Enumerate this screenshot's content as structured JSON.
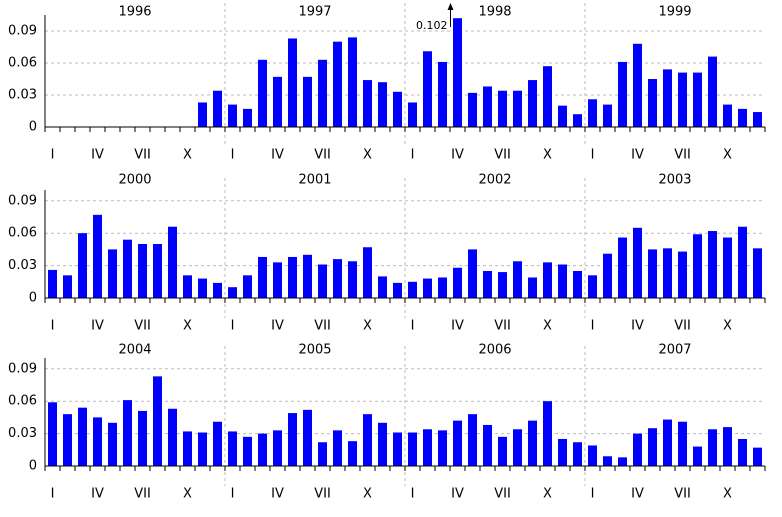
{
  "chart_data": [
    {
      "type": "bar",
      "color": "#0000ff",
      "grid": true,
      "years": [
        "1996",
        "1997",
        "1998",
        "1999"
      ],
      "categories": [
        "I",
        null,
        null,
        "IV",
        null,
        null,
        "VII",
        null,
        null,
        "X",
        null,
        null,
        "I",
        null,
        null,
        "IV",
        null,
        null,
        "VII",
        null,
        null,
        "X",
        null,
        null,
        "I",
        null,
        null,
        "IV",
        null,
        null,
        "VII",
        null,
        null,
        "X",
        null,
        null,
        "I",
        null,
        null,
        "IV",
        null,
        null,
        "VII",
        null,
        null,
        "X",
        null,
        null
      ],
      "values": [
        0,
        0,
        0,
        0,
        0,
        0,
        0,
        0,
        0,
        0,
        0.023,
        0.034,
        0.021,
        0.017,
        0.063,
        0.047,
        0.083,
        0.047,
        0.063,
        0.08,
        0.084,
        0.044,
        0.042,
        0.033,
        0.023,
        0.071,
        0.061,
        0.102,
        0.032,
        0.038,
        0.034,
        0.034,
        0.044,
        0.057,
        0.02,
        0.012,
        0.026,
        0.021,
        0.061,
        0.078,
        0.045,
        0.054,
        0.051,
        0.051,
        0.066,
        0.021,
        0.017,
        0.014
      ],
      "value_labels": [
        null,
        null,
        null,
        null,
        null,
        null,
        null,
        null,
        null,
        null,
        null,
        null,
        null,
        null,
        null,
        null,
        null,
        null,
        null,
        null,
        null,
        null,
        null,
        null,
        null,
        null,
        null,
        "0.102",
        null,
        null,
        null,
        null,
        null,
        null,
        null,
        null,
        null,
        null,
        null,
        null,
        null,
        null,
        null,
        null,
        null,
        null,
        null,
        null
      ],
      "ylim": [
        0,
        0.105
      ],
      "yticks": [
        0,
        0.03,
        0.06,
        0.09
      ]
    },
    {
      "type": "bar",
      "color": "#0000ff",
      "grid": true,
      "years": [
        "2000",
        "2001",
        "2002",
        "2003"
      ],
      "categories": [
        "I",
        null,
        null,
        "IV",
        null,
        null,
        "VII",
        null,
        null,
        "X",
        null,
        null,
        "I",
        null,
        null,
        "IV",
        null,
        null,
        "VII",
        null,
        null,
        "X",
        null,
        null,
        "I",
        null,
        null,
        "IV",
        null,
        null,
        "VII",
        null,
        null,
        "X",
        null,
        null,
        "I",
        null,
        null,
        "IV",
        null,
        null,
        "VII",
        null,
        null,
        "X",
        null,
        null
      ],
      "values": [
        0.026,
        0.021,
        0.06,
        0.077,
        0.045,
        0.054,
        0.05,
        0.05,
        0.066,
        0.021,
        0.018,
        0.014,
        0.01,
        0.021,
        0.038,
        0.033,
        0.038,
        0.04,
        0.031,
        0.036,
        0.034,
        0.047,
        0.02,
        0.014,
        0.015,
        0.018,
        0.019,
        0.028,
        0.045,
        0.025,
        0.024,
        0.034,
        0.019,
        0.033,
        0.031,
        0.025,
        0.021,
        0.041,
        0.056,
        0.065,
        0.045,
        0.046,
        0.043,
        0.059,
        0.062,
        0.056,
        0.066,
        0.046
      ],
      "ylim": [
        0,
        0.1
      ],
      "yticks": [
        0,
        0.03,
        0.06,
        0.09
      ]
    },
    {
      "type": "bar",
      "color": "#0000ff",
      "grid": true,
      "years": [
        "2004",
        "2005",
        "2006",
        "2007"
      ],
      "categories": [
        "I",
        null,
        null,
        "IV",
        null,
        null,
        "VII",
        null,
        null,
        "X",
        null,
        null,
        "I",
        null,
        null,
        "IV",
        null,
        null,
        "VII",
        null,
        null,
        "X",
        null,
        null,
        "I",
        null,
        null,
        "IV",
        null,
        null,
        "VII",
        null,
        null,
        "X",
        null,
        null,
        "I",
        null,
        null,
        "IV",
        null,
        null,
        "VII",
        null,
        null,
        "X",
        null,
        null
      ],
      "values": [
        0.059,
        0.048,
        0.054,
        0.045,
        0.04,
        0.061,
        0.051,
        0.083,
        0.053,
        0.032,
        0.031,
        0.041,
        0.032,
        0.027,
        0.03,
        0.033,
        0.049,
        0.052,
        0.022,
        0.033,
        0.023,
        0.048,
        0.04,
        0.031,
        0.031,
        0.034,
        0.033,
        0.042,
        0.048,
        0.038,
        0.027,
        0.034,
        0.042,
        0.06,
        0.025,
        0.022,
        0.019,
        0.009,
        0.008,
        0.03,
        0.035,
        0.043,
        0.041,
        0.018,
        0.034,
        0.036,
        0.025,
        0.017
      ],
      "ylim": [
        0,
        0.1
      ],
      "yticks": [
        0,
        0.03,
        0.06,
        0.09
      ]
    }
  ]
}
